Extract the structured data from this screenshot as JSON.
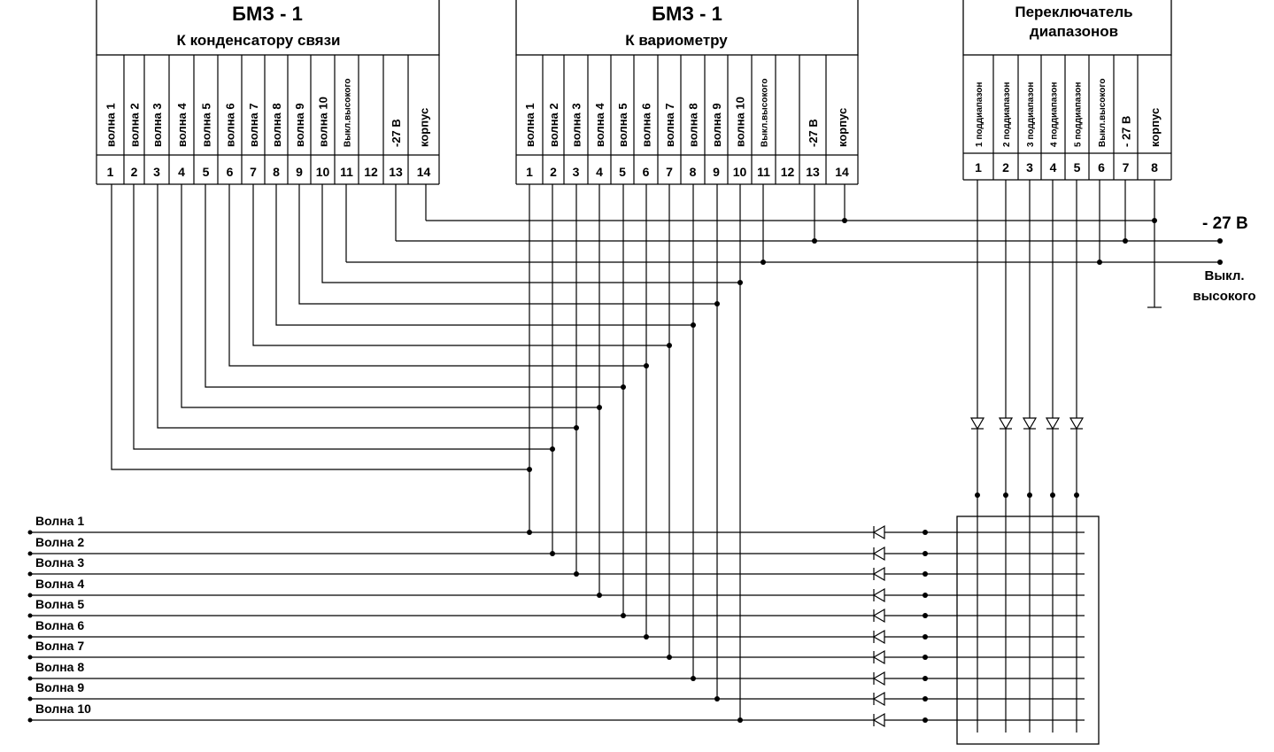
{
  "blocks": {
    "bmz_cap": {
      "title": "БМЗ - 1",
      "subtitle": "К  конденсатору связи",
      "signals": [
        "волна 1",
        "волна 2",
        "волна 3",
        "волна 4",
        "волна 5",
        "волна 6",
        "волна 7",
        "волна 8",
        "волна 9",
        "волна 10",
        "Выкл.высокого",
        "",
        "-27 В",
        "корпус"
      ],
      "pins": [
        "1",
        "2",
        "3",
        "4",
        "5",
        "6",
        "7",
        "8",
        "9",
        "10",
        "11",
        "12",
        "13",
        "14"
      ]
    },
    "bmz_var": {
      "title": "БМЗ - 1",
      "subtitle": "К  вариометру",
      "signals": [
        "волна 1",
        "волна 2",
        "волна 3",
        "волна 4",
        "волна 5",
        "волна 6",
        "волна 7",
        "волна 8",
        "волна 9",
        "волна 10",
        "Выкл.высокого",
        "",
        "-27 В",
        "корпус"
      ],
      "pins": [
        "1",
        "2",
        "3",
        "4",
        "5",
        "6",
        "7",
        "8",
        "9",
        "10",
        "11",
        "12",
        "13",
        "14"
      ]
    },
    "range_switch": {
      "title_line1": "Переключатель",
      "title_line2": "диапазонов",
      "signals": [
        "1 поддиапазон",
        "2 поддиапазон",
        "3 поддиапазон",
        "4 поддиапазон",
        "5 поддиапазон",
        "Выкл.высокого",
        "- 27 В",
        "корпус"
      ],
      "pins": [
        "1",
        "2",
        "3",
        "4",
        "5",
        "6",
        "7",
        "8"
      ]
    }
  },
  "bus_labels": {
    "minus27": "- 27 В",
    "off_high_line1": "Выкл.",
    "off_high_line2": "высокого"
  },
  "waves": [
    "Волна 1",
    "Волна 2",
    "Волна 3",
    "Волна 4",
    "Волна 5",
    "Волна 6",
    "Волна 7",
    "Волна 8",
    "Волна 9",
    "Волна 10"
  ],
  "colors": {
    "ink": "#000000",
    "background": "#ffffff"
  }
}
